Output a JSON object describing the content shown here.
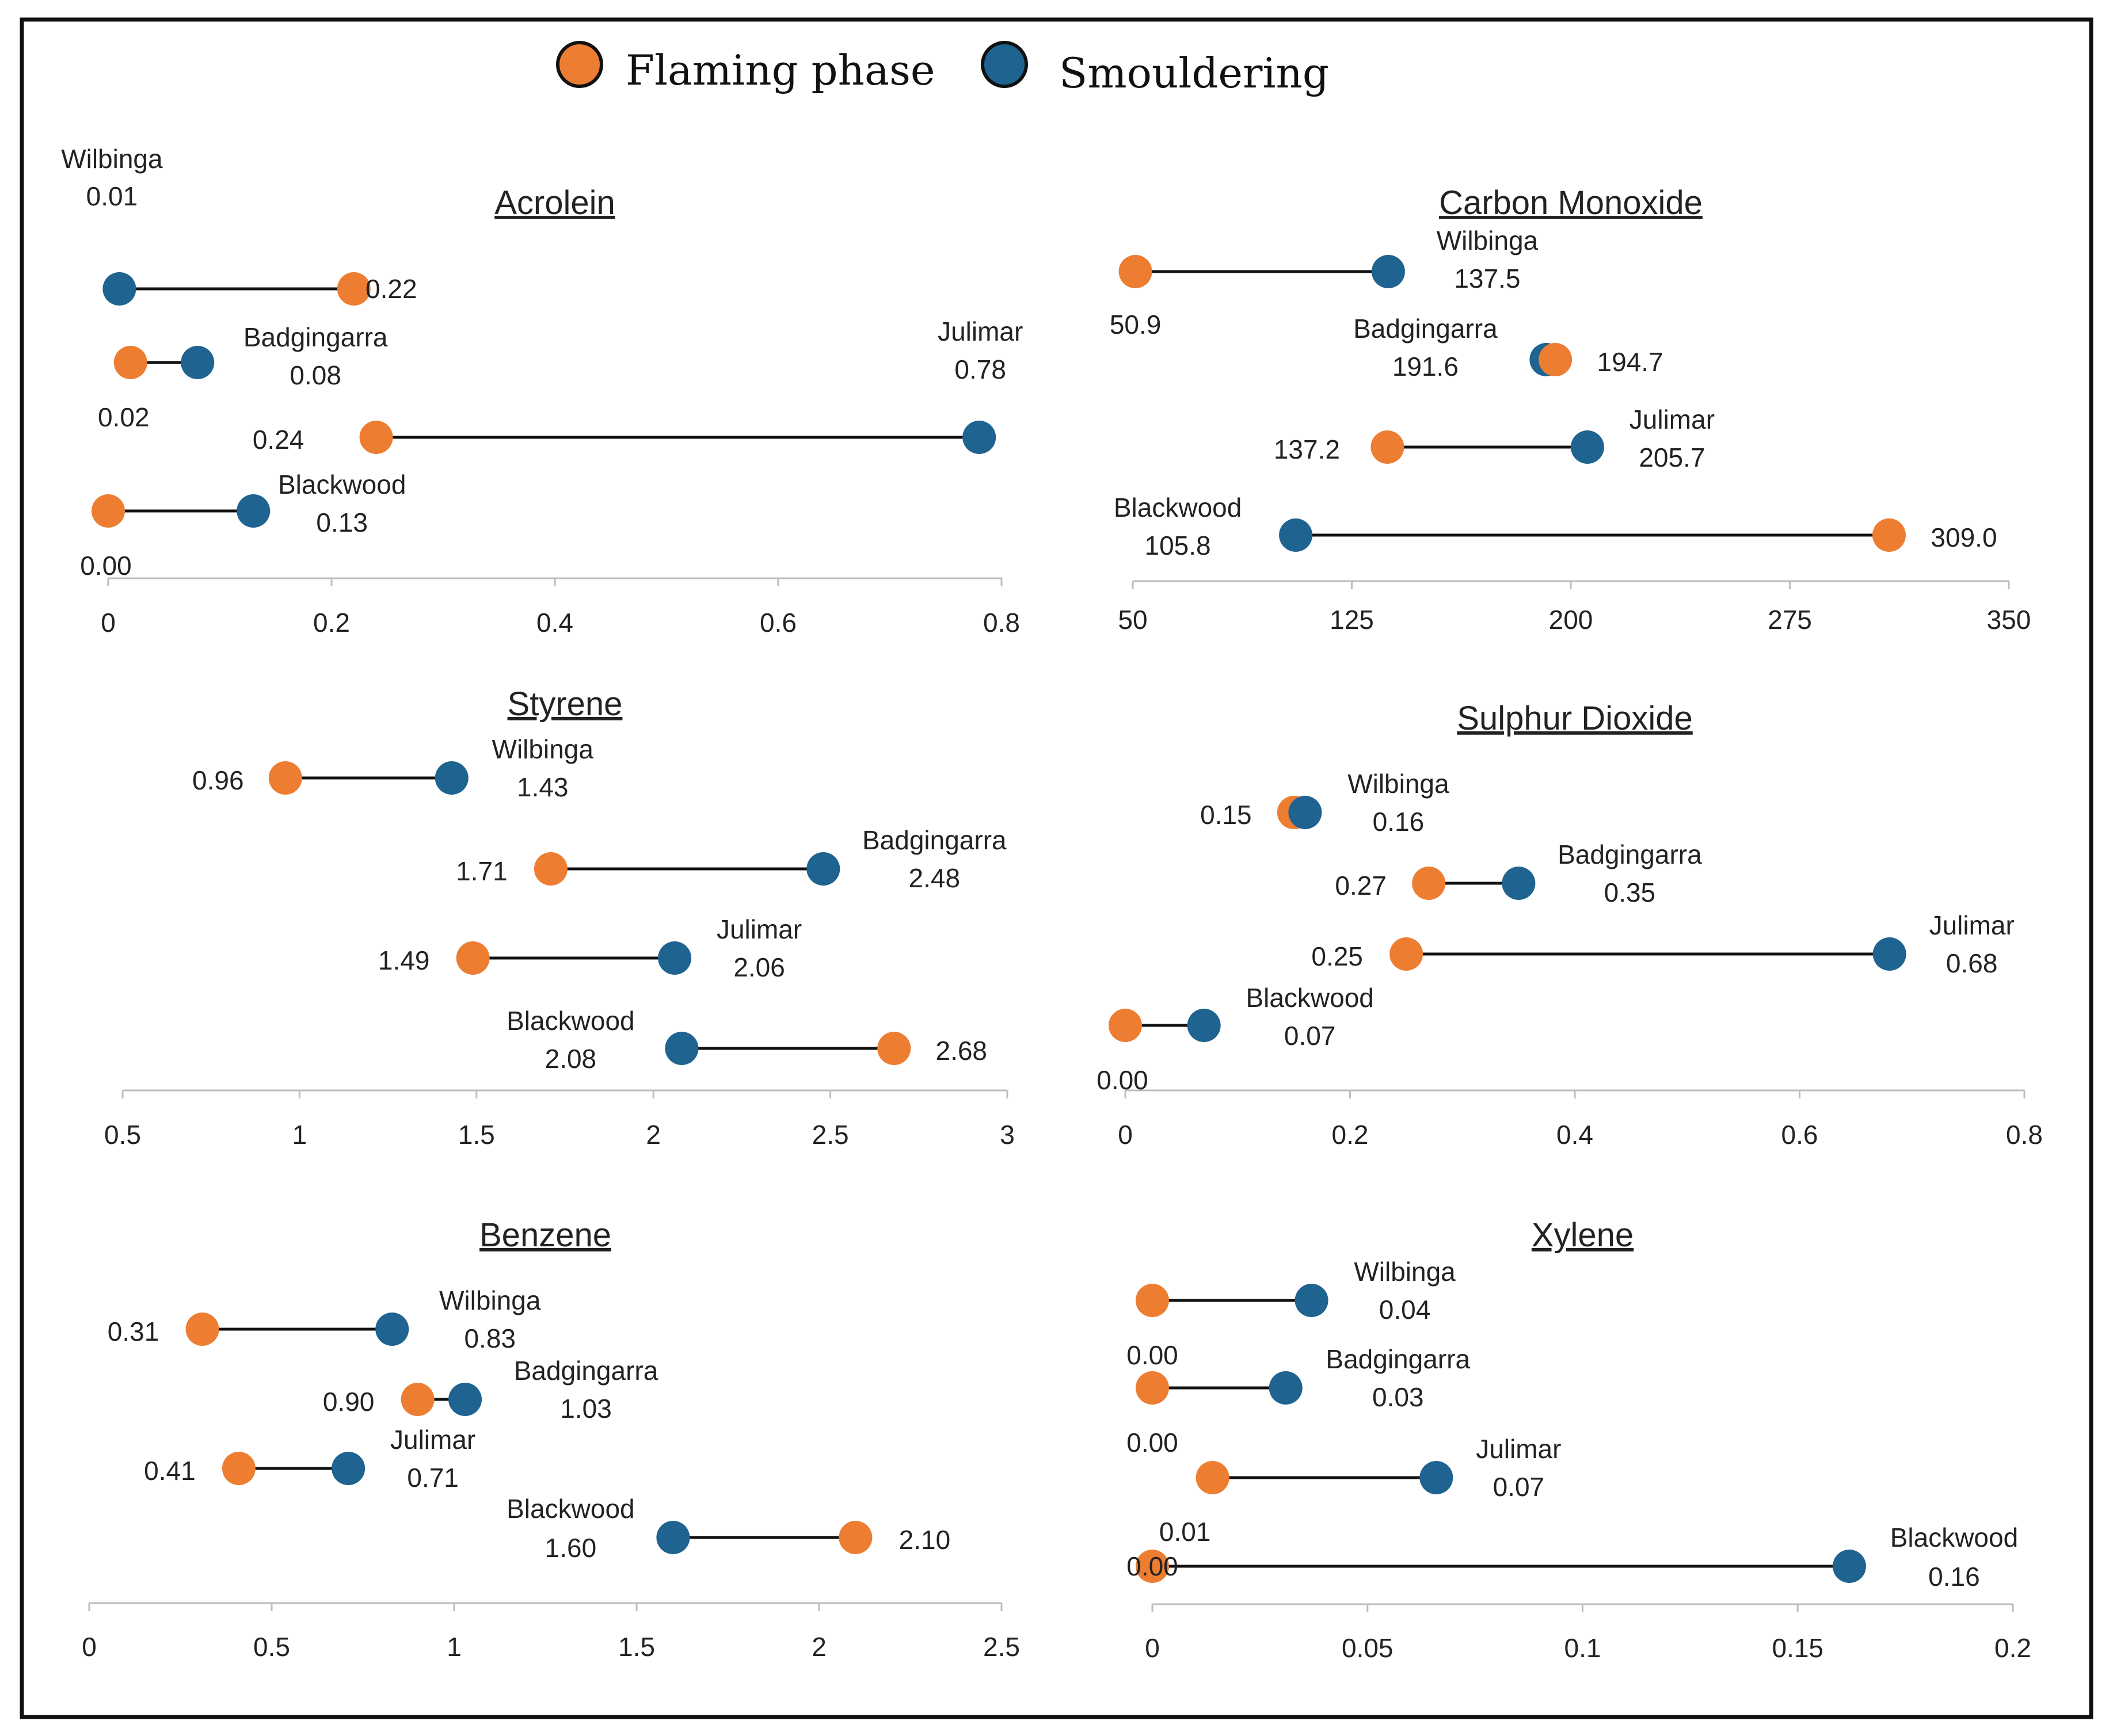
{
  "legend": {
    "flaming": {
      "label": "Flaming phase",
      "color": "#ED7D31"
    },
    "smouldering": {
      "label": "Smouldering",
      "color": "#1F6390"
    }
  },
  "chart_data": [
    {
      "type": "dumbbell",
      "title": "Acrolein",
      "xlim": [
        0,
        0.8
      ],
      "ticks": [
        "0",
        "0.2",
        "0.4",
        "0.6",
        "0.8"
      ],
      "sites": [
        {
          "name": "Wilbinga",
          "flaming": 0.22,
          "smouldering": 0.01,
          "flaming_label": "0.22",
          "smouldering_label": "0.01"
        },
        {
          "name": "Badgingarra",
          "flaming": 0.02,
          "smouldering": 0.08,
          "flaming_label": "0.02",
          "smouldering_label": "0.08"
        },
        {
          "name": "Julimar",
          "flaming": 0.24,
          "smouldering": 0.78,
          "flaming_label": "0.24",
          "smouldering_label": "0.78"
        },
        {
          "name": "Blackwood",
          "flaming": 0.0,
          "smouldering": 0.13,
          "flaming_label": "0.00",
          "smouldering_label": "0.13"
        }
      ]
    },
    {
      "type": "dumbbell",
      "title": "Carbon Monoxide",
      "xlim": [
        50,
        350
      ],
      "ticks": [
        "50",
        "125",
        "200",
        "275",
        "350"
      ],
      "sites": [
        {
          "name": "Wilbinga",
          "flaming": 50.9,
          "smouldering": 137.5,
          "flaming_label": "50.9",
          "smouldering_label": "137.5"
        },
        {
          "name": "Badgingarra",
          "flaming": 194.7,
          "smouldering": 191.6,
          "flaming_label": "194.7",
          "smouldering_label": "191.6"
        },
        {
          "name": "Julimar",
          "flaming": 137.2,
          "smouldering": 205.7,
          "flaming_label": "137.2",
          "smouldering_label": "205.7"
        },
        {
          "name": "Blackwood",
          "flaming": 309.0,
          "smouldering": 105.8,
          "flaming_label": "309.0",
          "smouldering_label": "105.8"
        }
      ]
    },
    {
      "type": "dumbbell",
      "title": "Styrene",
      "xlim": [
        0.5,
        3
      ],
      "ticks": [
        "0.5",
        "1",
        "1.5",
        "2",
        "2.5",
        "3"
      ],
      "sites": [
        {
          "name": "Wilbinga",
          "flaming": 0.96,
          "smouldering": 1.43,
          "flaming_label": "0.96",
          "smouldering_label": "1.43"
        },
        {
          "name": "Badgingarra",
          "flaming": 1.71,
          "smouldering": 2.48,
          "flaming_label": "1.71",
          "smouldering_label": "2.48"
        },
        {
          "name": "Julimar",
          "flaming": 1.49,
          "smouldering": 2.06,
          "flaming_label": "1.49",
          "smouldering_label": "2.06"
        },
        {
          "name": "Blackwood",
          "flaming": 2.68,
          "smouldering": 2.08,
          "flaming_label": "2.68",
          "smouldering_label": "2.08"
        }
      ]
    },
    {
      "type": "dumbbell",
      "title": "Sulphur Dioxide",
      "xlim": [
        0,
        0.8
      ],
      "ticks": [
        "0",
        "0.2",
        "0.4",
        "0.6",
        "0.8"
      ],
      "sites": [
        {
          "name": "Wilbinga",
          "flaming": 0.15,
          "smouldering": 0.16,
          "flaming_label": "0.15",
          "smouldering_label": "0.16"
        },
        {
          "name": "Badgingarra",
          "flaming": 0.27,
          "smouldering": 0.35,
          "flaming_label": "0.27",
          "smouldering_label": "0.35"
        },
        {
          "name": "Julimar",
          "flaming": 0.25,
          "smouldering": 0.68,
          "flaming_label": "0.25",
          "smouldering_label": "0.68"
        },
        {
          "name": "Blackwood",
          "flaming": 0.0,
          "smouldering": 0.07,
          "flaming_label": "0.00",
          "smouldering_label": "0.07"
        }
      ]
    },
    {
      "type": "dumbbell",
      "title": "Benzene",
      "xlim": [
        0,
        2.5
      ],
      "ticks": [
        "0",
        "0.5",
        "1",
        "1.5",
        "2",
        "2.5"
      ],
      "sites": [
        {
          "name": "Wilbinga",
          "flaming": 0.31,
          "smouldering": 0.83,
          "flaming_label": "0.31",
          "smouldering_label": "0.83"
        },
        {
          "name": "Badgingarra",
          "flaming": 0.9,
          "smouldering": 1.03,
          "flaming_label": "0.90",
          "smouldering_label": "1.03"
        },
        {
          "name": "Julimar",
          "flaming": 0.41,
          "smouldering": 0.71,
          "flaming_label": "0.41",
          "smouldering_label": "0.71"
        },
        {
          "name": "Blackwood",
          "flaming": 2.1,
          "smouldering": 1.6,
          "flaming_label": "2.10",
          "smouldering_label": "1.60"
        }
      ]
    },
    {
      "type": "dumbbell",
      "title": "Xylene",
      "xlim": [
        0,
        0.2
      ],
      "ticks": [
        "0",
        "0.05",
        "0.1",
        "0.15",
        "0.2"
      ],
      "sites": [
        {
          "name": "Wilbinga",
          "flaming": 0.0,
          "smouldering": 0.037,
          "flaming_label": "0.00",
          "smouldering_label": "0.04"
        },
        {
          "name": "Badgingarra",
          "flaming": 0.0,
          "smouldering": 0.031,
          "flaming_label": "0.00",
          "smouldering_label": "0.03"
        },
        {
          "name": "Julimar",
          "flaming": 0.014,
          "smouldering": 0.066,
          "flaming_label": "0.01",
          "smouldering_label": "0.07"
        },
        {
          "name": "Blackwood",
          "flaming": 0.0,
          "smouldering": 0.162,
          "flaming_label": "0.00",
          "smouldering_label": "0.16"
        }
      ]
    }
  ]
}
